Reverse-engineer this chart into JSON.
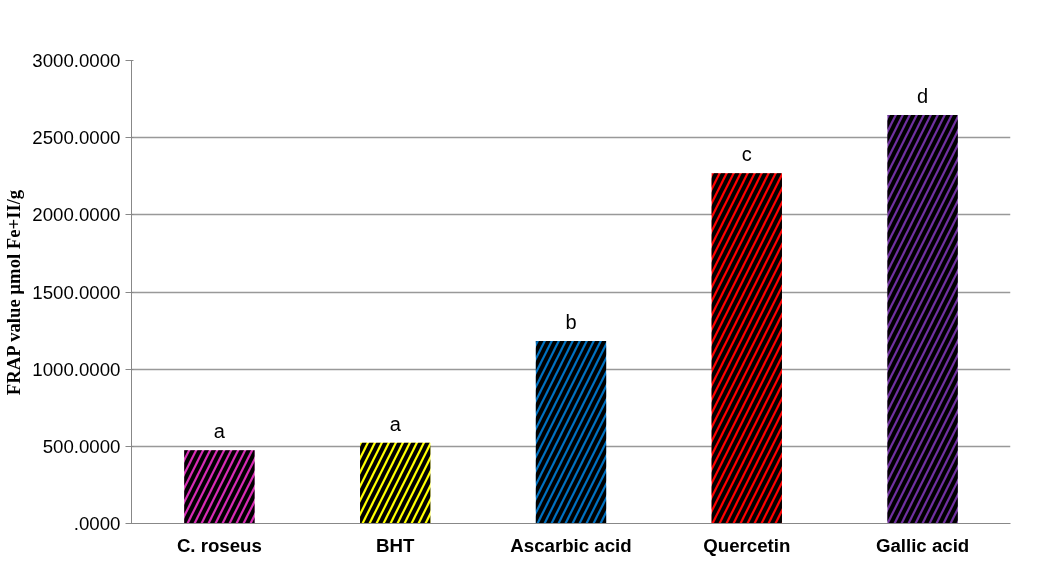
{
  "chart_data": {
    "type": "bar",
    "ylabel": "FRAP value µmol Fe+II/g",
    "categories": [
      "C. roseus",
      "BHT",
      "Ascarbic acid",
      "Quercetin",
      "Gallic acid"
    ],
    "values": [
      474,
      523,
      1182,
      2270,
      2647
    ],
    "colors": [
      "#d62bb4",
      "#ffff00",
      "#0070c0",
      "#ff0000",
      "#7030a0"
    ],
    "ylim": [
      0,
      3000
    ],
    "yticks": [
      {
        "value": 0,
        "label": ".0000"
      },
      {
        "value": 500,
        "label": "500.0000"
      },
      {
        "value": 1000,
        "label": "1000.0000"
      },
      {
        "value": 1500,
        "label": "1500.0000"
      },
      {
        "value": 2000,
        "label": "2000.0000"
      },
      {
        "value": 2500,
        "label": "2500.0000"
      },
      {
        "value": 3000,
        "label": "3000.0000"
      }
    ],
    "grid": "y",
    "annotations": [
      {
        "text": "a",
        "x": "C. roseus",
        "y": 474
      },
      {
        "text": "a",
        "x": "BHT",
        "y": 523
      },
      {
        "text": "b",
        "x": "Ascarbic acid",
        "y": 1182
      },
      {
        "text": "c",
        "x": "Quercetin",
        "y": 2270
      },
      {
        "text": "d",
        "x": "Gallic acid",
        "y": 2647
      }
    ]
  }
}
